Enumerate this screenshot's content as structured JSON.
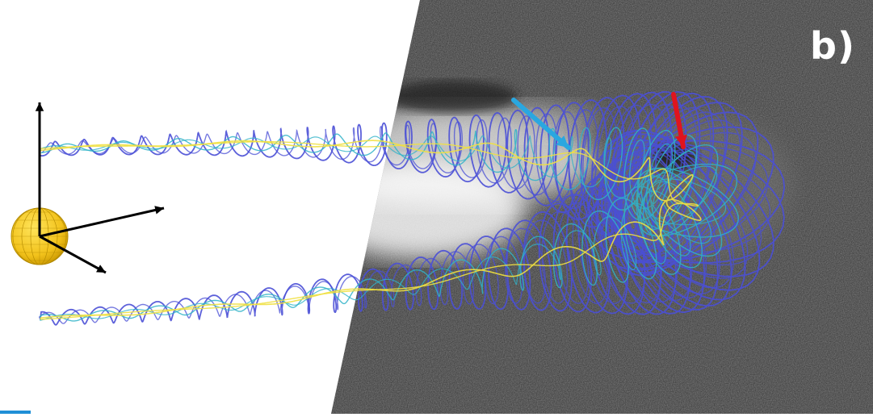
{
  "figure": {
    "panel_label": "b)",
    "colors": {
      "background_white": "#ffffff",
      "coronagraph_dark": "#3f3f3f",
      "sun_fill": "#f2c21b",
      "sun_grid": "#b38a00",
      "axes": "#000000",
      "flux_outer": "#4a4fd6",
      "flux_mid": "#2fb3c8",
      "flux_inner": "#f0e040",
      "cyan_arrow": "#2aa7e0",
      "red_arrow": "#e0141e",
      "corner_mark": "#1f8fd6"
    },
    "icons": [
      "sun-sphere-icon",
      "axis-arrows-icon",
      "flux-rope-icon",
      "cyan-arrow-icon",
      "red-arrow-icon"
    ]
  }
}
